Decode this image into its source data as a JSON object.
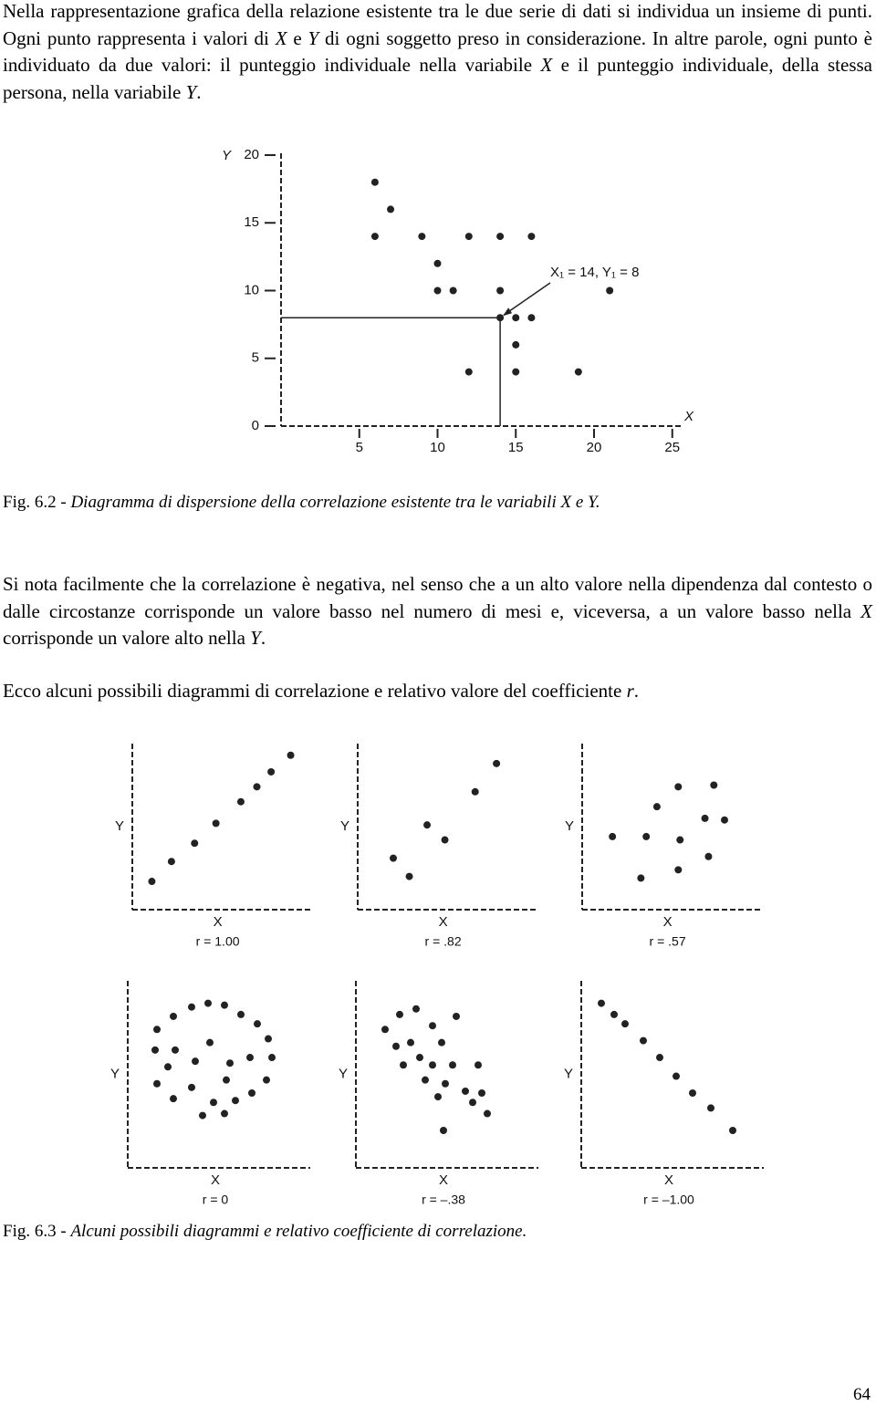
{
  "paragraphs": [
    [
      "Nella rappresentazione grafica della relazione esistente tra le due serie di dati si individua un insieme di punti. Ogni punto rappresenta i valori di ",
      "X",
      " e ",
      "Y",
      " di ogni soggetto preso in considerazione. In altre parole, ogni punto è individuato da due valori: il punteggio individuale nella variabile ",
      "X",
      " e il punteggio individuale, della stessa persona, nella variabile ",
      "Y",
      "."
    ],
    [
      "Si nota facilmente che la correlazione è negativa, nel senso che a un alto valore nella dipendenza dal contesto o dalle circostanze corrisponde un valore basso nel numero di mesi e, viceversa, a un valore basso nella ",
      "X",
      " corrisponde un valore alto nella ",
      "Y",
      "."
    ],
    [
      "Ecco alcuni possibili diagrammi di correlazione e relativo valore del coefficiente ",
      "r",
      "."
    ]
  ],
  "figure_6_2": {
    "type": "scatter",
    "x": [
      6,
      7,
      6,
      9,
      12,
      14,
      16,
      10,
      10,
      11,
      14,
      21,
      14,
      15,
      16,
      15,
      12,
      15,
      19
    ],
    "y": [
      18,
      16,
      14,
      14,
      14,
      14,
      14,
      12,
      10,
      10,
      10,
      10,
      8,
      8,
      8,
      6,
      4,
      4,
      4
    ],
    "xlim": [
      0,
      25
    ],
    "ylim": [
      0,
      20
    ],
    "xticks": [
      5,
      10,
      15,
      20,
      25
    ],
    "yticks": [
      0,
      5,
      10,
      15,
      20
    ],
    "xlabel": "X",
    "ylabel": "Y",
    "annotation": {
      "text": "X₁ = 14, Y₁ = 8",
      "x": 14,
      "y": 8
    },
    "color": "#222222"
  },
  "caption_6_2": [
    "Fig. 6.2 - ",
    "Diagramma di dispersione della correlazione esistente tra le variabili X e Y."
  ],
  "figure_6_3": {
    "panels": [
      {
        "type": "scatter",
        "x": [
          1.1,
          2.2,
          3.5,
          4.7,
          6.1,
          7.0,
          7.8,
          8.9
        ],
        "y": [
          1.7,
          2.9,
          4.0,
          5.2,
          6.5,
          7.4,
          8.3,
          9.3
        ],
        "xlim": [
          0,
          10
        ],
        "ylim": [
          0,
          10
        ],
        "xlabel": "X",
        "ylabel": "Y",
        "annotation": "r = 1.00"
      },
      {
        "type": "scatter",
        "x": [
          2.0,
          2.9,
          3.9,
          4.9,
          6.6,
          7.8
        ],
        "y": [
          3.1,
          2.0,
          5.1,
          4.2,
          7.1,
          8.8
        ],
        "xlim": [
          0,
          10
        ],
        "ylim": [
          0,
          10
        ],
        "xlabel": "X",
        "ylabel": "Y",
        "annotation": "r = .82"
      },
      {
        "type": "scatter",
        "x": [
          1.7,
          3.3,
          3.6,
          4.2,
          5.4,
          5.5,
          5.4,
          6.9,
          7.1,
          7.4,
          8.0
        ],
        "y": [
          4.4,
          1.9,
          4.4,
          6.2,
          2.4,
          4.2,
          7.4,
          5.5,
          3.2,
          7.5,
          5.4
        ],
        "xlim": [
          0,
          10
        ],
        "ylim": [
          0,
          10
        ],
        "xlabel": "X",
        "ylabel": "Y",
        "annotation": "r = .57"
      },
      {
        "type": "scatter",
        "x": [
          3.5,
          4.4,
          5.3,
          2.5,
          6.2,
          1.6,
          7.1,
          1.5,
          7.7,
          2.6,
          4.5,
          6.7,
          7.9,
          2.2,
          3.7,
          5.6,
          5.4,
          1.6,
          3.5,
          7.6,
          6.8,
          2.5,
          4.7,
          5.9,
          4.1,
          5.3
        ],
        "y": [
          8.6,
          8.8,
          8.7,
          8.1,
          8.2,
          7.4,
          7.7,
          6.3,
          6.9,
          6.3,
          6.7,
          5.9,
          5.9,
          5.4,
          5.7,
          5.6,
          4.7,
          4.5,
          4.3,
          4.7,
          4.0,
          3.7,
          3.5,
          3.6,
          2.8,
          2.9
        ],
        "xlim": [
          0,
          10
        ],
        "ylim": [
          0,
          10
        ],
        "xlabel": "X",
        "ylabel": "Y",
        "annotation": "r = 0"
      },
      {
        "type": "scatter",
        "x": [
          1.6,
          2.4,
          3.3,
          4.2,
          5.5,
          2.2,
          3.0,
          4.7,
          3.5,
          4.2,
          5.3,
          6.7,
          2.6,
          3.8,
          4.9,
          6.0,
          6.9,
          4.5,
          6.4,
          7.2,
          4.8
        ],
        "y": [
          7.4,
          8.2,
          8.5,
          7.6,
          8.1,
          6.5,
          6.7,
          6.7,
          5.9,
          5.5,
          5.5,
          5.5,
          5.5,
          4.7,
          4.5,
          4.1,
          4.0,
          3.8,
          3.5,
          2.9,
          2.0
        ],
        "xlim": [
          0,
          10
        ],
        "ylim": [
          0,
          10
        ],
        "xlabel": "X",
        "ylabel": "Y",
        "annotation": "r = –.38"
      },
      {
        "type": "scatter",
        "x": [
          1.1,
          1.8,
          2.4,
          3.4,
          4.3,
          5.2,
          6.1,
          7.1,
          8.3
        ],
        "y": [
          8.8,
          8.2,
          7.7,
          6.8,
          5.9,
          4.9,
          4.0,
          3.2,
          2.0
        ],
        "xlim": [
          0,
          10
        ],
        "ylim": [
          0,
          10
        ],
        "xlabel": "X",
        "ylabel": "Y",
        "annotation": "r = –1.00"
      }
    ]
  },
  "caption_6_3": [
    "Fig. 6.3 - ",
    "Alcuni possibili diagrammi e relativo coefficiente di correlazione."
  ],
  "page_number": "64"
}
